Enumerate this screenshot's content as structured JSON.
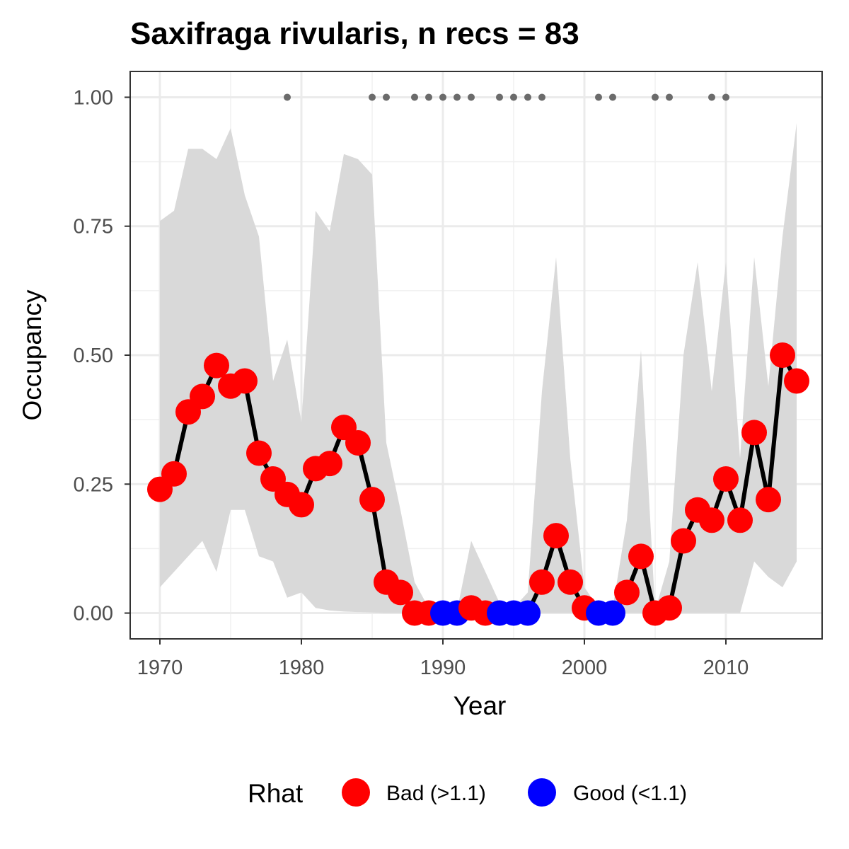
{
  "chart_data": {
    "type": "line",
    "title": "Saxifraga rivularis, n recs = 83",
    "xlabel": "Year",
    "ylabel": "Occupancy",
    "xlim": [
      1967.9,
      2016.8
    ],
    "ylim": [
      -0.05,
      1.05
    ],
    "x_ticks": [
      1970,
      1980,
      1990,
      2000,
      2010
    ],
    "x_tick_labels": [
      "1970",
      "1980",
      "1990",
      "2000",
      "2010"
    ],
    "y_ticks": [
      0,
      0.25,
      0.5,
      0.75,
      1.0
    ],
    "y_tick_labels": [
      "0.00",
      "0.25",
      "0.50",
      "0.75",
      "1.00"
    ],
    "grid": true,
    "colors": {
      "bad": "#ff0000",
      "good": "#0000ff",
      "line": "#000000",
      "band": "#d9d9d9",
      "records": "#6b6b6b"
    },
    "series": [
      {
        "x": [
          1970,
          1971,
          1972,
          1973,
          1974,
          1975,
          1976,
          1977,
          1978,
          1979,
          1980,
          1981,
          1982,
          1983,
          1984,
          1985,
          1986,
          1987,
          1988,
          1989,
          1990,
          1991,
          1992,
          1993,
          1994,
          1995,
          1996,
          1997,
          1998,
          1999,
          2000,
          2001,
          2002,
          2003,
          2004,
          2005,
          2006,
          2007,
          2008,
          2009,
          2010,
          2011,
          2012,
          2013,
          2014,
          2015
        ],
        "values": [
          0.24,
          0.27,
          0.39,
          0.42,
          0.48,
          0.44,
          0.45,
          0.31,
          0.26,
          0.23,
          0.21,
          0.28,
          0.29,
          0.36,
          0.33,
          0.22,
          0.06,
          0.04,
          0.0,
          0.0,
          0.0,
          0.0,
          0.01,
          0.0,
          0.0,
          0.0,
          0.0,
          0.06,
          0.15,
          0.06,
          0.01,
          0.0,
          0.0,
          0.04,
          0.11,
          0.0,
          0.01,
          0.14,
          0.2,
          0.18,
          0.26,
          0.18,
          0.35,
          0.22,
          0.5,
          0.45
        ],
        "lower": [
          0.05,
          0.08,
          0.11,
          0.14,
          0.08,
          0.2,
          0.2,
          0.11,
          0.1,
          0.03,
          0.04,
          0.01,
          0.005,
          0.003,
          0.002,
          0.001,
          0,
          0,
          0,
          0,
          0,
          0,
          0,
          0,
          0,
          0,
          0,
          0,
          0,
          0,
          0,
          0,
          0,
          0,
          0,
          0,
          0,
          0,
          0,
          0,
          0,
          0,
          0.1,
          0.07,
          0.05,
          0.1
        ],
        "upper": [
          0.76,
          0.78,
          0.9,
          0.9,
          0.88,
          0.94,
          0.81,
          0.73,
          0.45,
          0.53,
          0.37,
          0.78,
          0.74,
          0.89,
          0.88,
          0.85,
          0.33,
          0.2,
          0.06,
          0.01,
          0.005,
          0.005,
          0.14,
          0.08,
          0.02,
          0.01,
          0.04,
          0.43,
          0.69,
          0.3,
          0.05,
          0.01,
          0.01,
          0.18,
          0.51,
          0.005,
          0.1,
          0.5,
          0.68,
          0.43,
          0.68,
          0.3,
          0.69,
          0.44,
          0.73,
          0.95
        ],
        "rhat": [
          "Bad",
          "Bad",
          "Bad",
          "Bad",
          "Bad",
          "Bad",
          "Bad",
          "Bad",
          "Bad",
          "Bad",
          "Bad",
          "Bad",
          "Bad",
          "Bad",
          "Bad",
          "Bad",
          "Bad",
          "Bad",
          "Bad",
          "Bad",
          "Good",
          "Good",
          "Bad",
          "Bad",
          "Good",
          "Good",
          "Good",
          "Bad",
          "Bad",
          "Bad",
          "Bad",
          "Good",
          "Good",
          "Bad",
          "Bad",
          "Bad",
          "Bad",
          "Bad",
          "Bad",
          "Bad",
          "Bad",
          "Bad",
          "Bad",
          "Bad",
          "Bad",
          "Bad"
        ]
      }
    ],
    "record_years": [
      1979,
      1985,
      1986,
      1988,
      1989,
      1990,
      1991,
      1992,
      1994,
      1995,
      1996,
      1997,
      2001,
      2002,
      2005,
      2006,
      2009,
      2010
    ],
    "legend": {
      "title": "Rhat",
      "position": "bottom",
      "items": [
        {
          "label": "Bad (>1.1)",
          "color": "#ff0000"
        },
        {
          "label": "Good (<1.1)",
          "color": "#0000ff"
        }
      ]
    }
  }
}
